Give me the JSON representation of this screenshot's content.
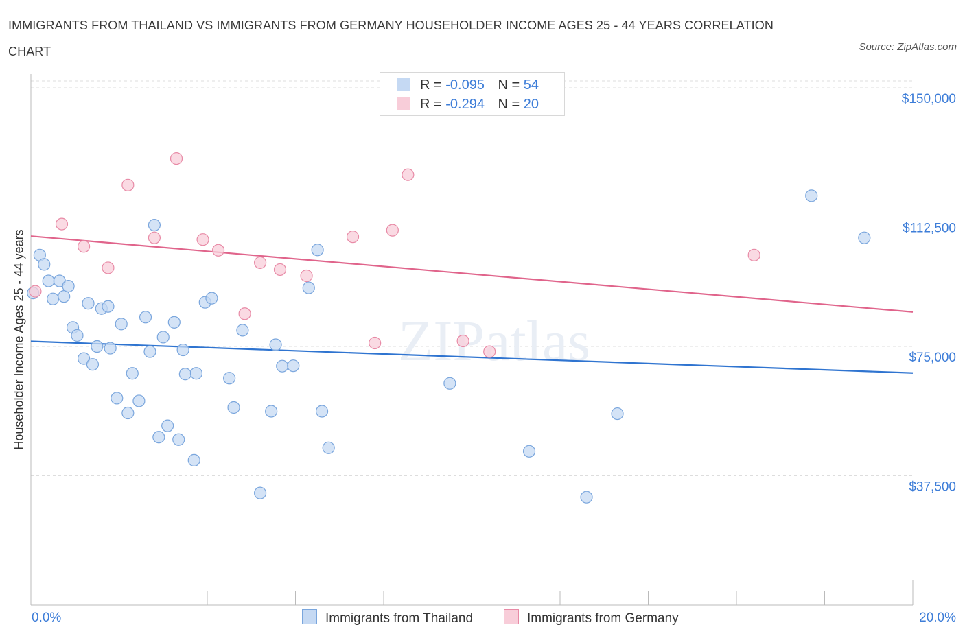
{
  "title": "IMMIGRANTS FROM THAILAND VS IMMIGRANTS FROM GERMANY HOUSEHOLDER INCOME AGES 25 - 44 YEARS CORRELATION CHART",
  "source": "Source: ZipAtlas.com",
  "watermark": "ZIPatlas",
  "legend": {
    "rows": [
      {
        "r_label": "R =",
        "r_value": "-0.095",
        "n_label": "N =",
        "n_value": "54"
      },
      {
        "r_label": "R =",
        "r_value": "-0.294",
        "n_label": "N =",
        "n_value": "20"
      }
    ]
  },
  "colors": {
    "thailand_fill": "#c5d9f3",
    "thailand_stroke": "#7aa6dd",
    "thailand_line": "#2f74d0",
    "germany_fill": "#f8cdd9",
    "germany_stroke": "#e88aa6",
    "germany_line": "#e0648b",
    "accent_text": "#3d7dd8",
    "grid": "#dddddd"
  },
  "chart_data": {
    "type": "scatter",
    "title": "IMMIGRANTS FROM THAILAND VS IMMIGRANTS FROM GERMANY HOUSEHOLDER INCOME AGES 25 - 44 YEARS CORRELATION CHART",
    "xlabel": "",
    "ylabel": "Householder Income Ages 25 - 44 years",
    "xlim": [
      0,
      20
    ],
    "ylim": [
      0,
      152000
    ],
    "x_tick_labels": [
      "0.0%",
      "20.0%"
    ],
    "y_ticks": [
      37500,
      75000,
      112500,
      150000
    ],
    "y_tick_labels": [
      "$37,500",
      "$75,000",
      "$112,500",
      "$150,000"
    ],
    "grid": true,
    "legend_position": "top-center",
    "series": [
      {
        "name": "Immigrants from Thailand",
        "r": -0.095,
        "n": 54,
        "trend": {
          "x": [
            0,
            20
          ],
          "y": [
            76500,
            67300
          ]
        },
        "points": [
          {
            "x": 0.2,
            "y": 101500
          },
          {
            "x": 0.3,
            "y": 98800
          },
          {
            "x": 0.4,
            "y": 94000
          },
          {
            "x": 0.5,
            "y": 88800
          },
          {
            "x": 0.65,
            "y": 94000
          },
          {
            "x": 0.75,
            "y": 89500
          },
          {
            "x": 0.85,
            "y": 92500
          },
          {
            "x": 0.95,
            "y": 80500
          },
          {
            "x": 1.05,
            "y": 78200
          },
          {
            "x": 1.2,
            "y": 71500
          },
          {
            "x": 1.3,
            "y": 87500
          },
          {
            "x": 1.4,
            "y": 69800
          },
          {
            "x": 1.5,
            "y": 75000
          },
          {
            "x": 1.6,
            "y": 86000
          },
          {
            "x": 1.75,
            "y": 86600
          },
          {
            "x": 1.8,
            "y": 74500
          },
          {
            "x": 1.95,
            "y": 60000
          },
          {
            "x": 2.05,
            "y": 81500
          },
          {
            "x": 2.2,
            "y": 55700
          },
          {
            "x": 2.3,
            "y": 67200
          },
          {
            "x": 2.45,
            "y": 59200
          },
          {
            "x": 2.6,
            "y": 83500
          },
          {
            "x": 2.7,
            "y": 73500
          },
          {
            "x": 2.8,
            "y": 110200
          },
          {
            "x": 2.9,
            "y": 48700
          },
          {
            "x": 3.0,
            "y": 77700
          },
          {
            "x": 3.1,
            "y": 52000
          },
          {
            "x": 3.25,
            "y": 82000
          },
          {
            "x": 3.35,
            "y": 48000
          },
          {
            "x": 3.45,
            "y": 74000
          },
          {
            "x": 3.5,
            "y": 67000
          },
          {
            "x": 3.7,
            "y": 42000
          },
          {
            "x": 3.75,
            "y": 67200
          },
          {
            "x": 3.95,
            "y": 87800
          },
          {
            "x": 4.1,
            "y": 89000
          },
          {
            "x": 4.5,
            "y": 65800
          },
          {
            "x": 4.6,
            "y": 57300
          },
          {
            "x": 4.8,
            "y": 79700
          },
          {
            "x": 5.2,
            "y": 32500
          },
          {
            "x": 5.45,
            "y": 56200
          },
          {
            "x": 5.55,
            "y": 75500
          },
          {
            "x": 5.7,
            "y": 69300
          },
          {
            "x": 5.95,
            "y": 69400
          },
          {
            "x": 6.3,
            "y": 92000
          },
          {
            "x": 6.5,
            "y": 103000
          },
          {
            "x": 6.6,
            "y": 56200
          },
          {
            "x": 6.75,
            "y": 45600
          },
          {
            "x": 9.5,
            "y": 64300
          },
          {
            "x": 11.3,
            "y": 44600
          },
          {
            "x": 12.6,
            "y": 31300
          },
          {
            "x": 13.3,
            "y": 55500
          },
          {
            "x": 17.7,
            "y": 118700
          },
          {
            "x": 18.9,
            "y": 106500
          },
          {
            "x": 0.05,
            "y": 90500
          }
        ]
      },
      {
        "name": "Immigrants from Germany",
        "r": -0.294,
        "n": 20,
        "trend": {
          "x": [
            0,
            20
          ],
          "y": [
            107000,
            85000
          ]
        },
        "points": [
          {
            "x": 0.1,
            "y": 91000
          },
          {
            "x": 0.7,
            "y": 110500
          },
          {
            "x": 1.2,
            "y": 104000
          },
          {
            "x": 1.75,
            "y": 97800
          },
          {
            "x": 2.2,
            "y": 121800
          },
          {
            "x": 2.8,
            "y": 106500
          },
          {
            "x": 3.3,
            "y": 129500
          },
          {
            "x": 3.9,
            "y": 106000
          },
          {
            "x": 4.25,
            "y": 102900
          },
          {
            "x": 4.85,
            "y": 84500
          },
          {
            "x": 5.2,
            "y": 99300
          },
          {
            "x": 5.65,
            "y": 97300
          },
          {
            "x": 6.25,
            "y": 95500
          },
          {
            "x": 7.3,
            "y": 106800
          },
          {
            "x": 7.8,
            "y": 76000
          },
          {
            "x": 8.2,
            "y": 108700
          },
          {
            "x": 8.55,
            "y": 124800
          },
          {
            "x": 9.8,
            "y": 76600
          },
          {
            "x": 10.4,
            "y": 73500
          },
          {
            "x": 16.4,
            "y": 101500
          }
        ]
      }
    ]
  }
}
